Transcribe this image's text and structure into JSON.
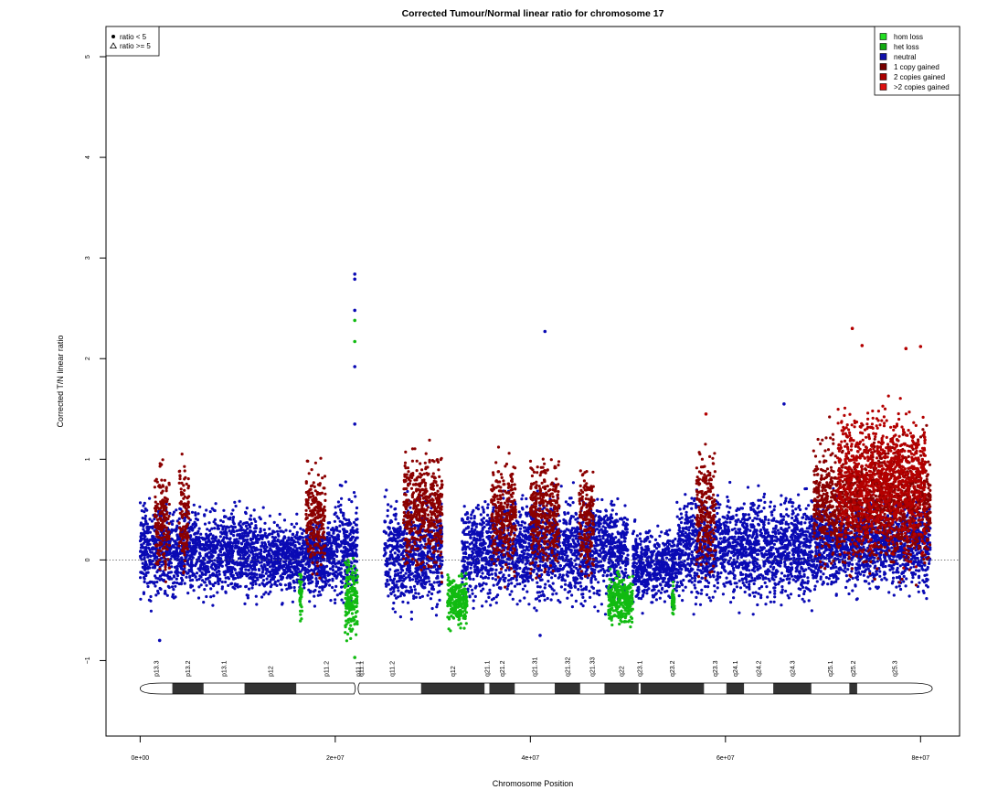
{
  "chart_data": {
    "type": "scatter",
    "title": "Corrected Tumour/Normal linear ratio for chromosome  17",
    "xlabel": "Chromosome Position",
    "ylabel": "Corrected T/N linear ratio",
    "xlim": [
      -3500000,
      84000000
    ],
    "ylim": [
      -1.75,
      5.3
    ],
    "x_ticks": [
      {
        "value": 0,
        "label": "0e+00"
      },
      {
        "value": 20000000,
        "label": "2e+07"
      },
      {
        "value": 40000000,
        "label": "4e+07"
      },
      {
        "value": 60000000,
        "label": "6e+07"
      },
      {
        "value": 80000000,
        "label": "8e+07"
      }
    ],
    "y_ticks": [
      {
        "value": -1,
        "label": "−1"
      },
      {
        "value": 0,
        "label": "0"
      },
      {
        "value": 1,
        "label": "1"
      },
      {
        "value": 2,
        "label": "2"
      },
      {
        "value": 3,
        "label": "3"
      },
      {
        "value": 4,
        "label": "4"
      },
      {
        "value": 5,
        "label": "5"
      }
    ],
    "reference_line": {
      "y": 0,
      "style": "dotted"
    },
    "grid": false,
    "shape_legend": {
      "position": "top-left",
      "entries": [
        {
          "symbol": "filled-circle",
          "label": "ratio < 5"
        },
        {
          "symbol": "open-triangle",
          "label": "ratio >= 5"
        }
      ]
    },
    "legend": {
      "position": "top-right",
      "entries": [
        {
          "label": "hom loss",
          "color": "#22dd22"
        },
        {
          "label": "het loss",
          "color": "#11aa11"
        },
        {
          "label": "neutral",
          "color": "#1111aa"
        },
        {
          "label": "1 copy gained",
          "color": "#770000"
        },
        {
          "label": "2 copies gained",
          "color": "#aa0000"
        },
        {
          "label": ">2 copies gained",
          "color": "#dd1111"
        }
      ]
    },
    "series": [
      {
        "name": "neutral",
        "color": "#0a0ab4",
        "segments": [
          {
            "start": 0,
            "end": 3000000,
            "mean": 0.1,
            "spread": 0.38
          },
          {
            "start": 3000000,
            "end": 12000000,
            "mean": 0.08,
            "spread": 0.35
          },
          {
            "start": 12000000,
            "end": 20000000,
            "mean": 0.02,
            "spread": 0.3
          },
          {
            "start": 20000000,
            "end": 22300000,
            "mean": 0.1,
            "spread": 0.4
          },
          {
            "start": 25000000,
            "end": 31000000,
            "mean": 0.05,
            "spread": 0.42
          },
          {
            "start": 33000000,
            "end": 50000000,
            "mean": 0.1,
            "spread": 0.4
          },
          {
            "start": 50500000,
            "end": 55000000,
            "mean": -0.05,
            "spread": 0.3
          },
          {
            "start": 55000000,
            "end": 69000000,
            "mean": 0.1,
            "spread": 0.4
          },
          {
            "start": 69000000,
            "end": 81000000,
            "mean": 0.15,
            "spread": 0.35
          }
        ],
        "outliers": [
          {
            "x": 22000000,
            "y": 2.84
          },
          {
            "x": 22000000,
            "y": 2.79
          },
          {
            "x": 22000000,
            "y": 2.48
          },
          {
            "x": 22000000,
            "y": 1.92
          },
          {
            "x": 22000000,
            "y": 1.35
          },
          {
            "x": 41500000,
            "y": 2.27
          },
          {
            "x": 66000000,
            "y": 1.55
          },
          {
            "x": 2000000,
            "y": -0.8
          },
          {
            "x": 41000000,
            "y": -0.75
          }
        ]
      },
      {
        "name": "het loss",
        "color": "#11bb11",
        "segments": [
          {
            "start": 16300000,
            "end": 16600000,
            "mean": -0.35,
            "spread": 0.2
          },
          {
            "start": 21000000,
            "end": 22300000,
            "mean": -0.4,
            "spread": 0.35
          },
          {
            "start": 31500000,
            "end": 33500000,
            "mean": -0.4,
            "spread": 0.2
          },
          {
            "start": 48000000,
            "end": 50500000,
            "mean": -0.4,
            "spread": 0.2
          },
          {
            "start": 54500000,
            "end": 54800000,
            "mean": -0.4,
            "spread": 0.15
          }
        ],
        "outliers": [
          {
            "x": 22000000,
            "y": 2.38
          },
          {
            "x": 22000000,
            "y": 2.17
          },
          {
            "x": 22000000,
            "y": -0.97
          }
        ]
      },
      {
        "name": "1 copy gained",
        "color": "#8b0000",
        "segments": [
          {
            "start": 1500000,
            "end": 3000000,
            "mean": 0.4,
            "spread": 0.45
          },
          {
            "start": 4000000,
            "end": 5000000,
            "mean": 0.4,
            "spread": 0.45
          },
          {
            "start": 17000000,
            "end": 19000000,
            "mean": 0.4,
            "spread": 0.4
          },
          {
            "start": 27000000,
            "end": 31000000,
            "mean": 0.5,
            "spread": 0.45
          },
          {
            "start": 36000000,
            "end": 38500000,
            "mean": 0.45,
            "spread": 0.45
          },
          {
            "start": 40000000,
            "end": 43000000,
            "mean": 0.45,
            "spread": 0.45
          },
          {
            "start": 45000000,
            "end": 46500000,
            "mean": 0.4,
            "spread": 0.45
          },
          {
            "start": 57000000,
            "end": 59000000,
            "mean": 0.45,
            "spread": 0.45
          },
          {
            "start": 69000000,
            "end": 81000000,
            "mean": 0.55,
            "spread": 0.5
          }
        ]
      },
      {
        "name": "2 copies gained",
        "color": "#b40000",
        "segments": [
          {
            "start": 71500000,
            "end": 80500000,
            "mean": 0.8,
            "spread": 0.55
          }
        ],
        "outliers": [
          {
            "x": 73000000,
            "y": 2.3
          },
          {
            "x": 74000000,
            "y": 2.13
          },
          {
            "x": 78500000,
            "y": 2.1
          },
          {
            "x": 80000000,
            "y": 2.12
          },
          {
            "x": 58000000,
            "y": 1.45
          }
        ]
      }
    ],
    "ideogram": {
      "centromere": 22200000,
      "end": 81200000,
      "bands": [
        {
          "label": "p13.3",
          "start": 0,
          "end": 3300000,
          "stain": "gneg"
        },
        {
          "label": "p13.2",
          "start": 3300000,
          "end": 6500000,
          "stain": "gpos"
        },
        {
          "label": "p13.1",
          "start": 6500000,
          "end": 10700000,
          "stain": "gneg"
        },
        {
          "label": "p12",
          "start": 10700000,
          "end": 16000000,
          "stain": "gpos"
        },
        {
          "label": "p11.2",
          "start": 16000000,
          "end": 22200000,
          "stain": "gneg"
        },
        {
          "label": "p11.1",
          "start": 22200000,
          "end": 22500000,
          "stain": "acen"
        },
        {
          "label": "q11.1",
          "start": 22500000,
          "end": 22800000,
          "stain": "acen"
        },
        {
          "label": "q11.2",
          "start": 22800000,
          "end": 28800000,
          "stain": "gneg"
        },
        {
          "label": "q12",
          "start": 28800000,
          "end": 35300000,
          "stain": "gpos"
        },
        {
          "label": "q21.1",
          "start": 35300000,
          "end": 35800000,
          "stain": "gneg"
        },
        {
          "label": "q21.2",
          "start": 35800000,
          "end": 38400000,
          "stain": "gpos"
        },
        {
          "label": "q21.31",
          "start": 38400000,
          "end": 42500000,
          "stain": "gneg"
        },
        {
          "label": "q21.32",
          "start": 42500000,
          "end": 45100000,
          "stain": "gpos"
        },
        {
          "label": "q21.33",
          "start": 45100000,
          "end": 47600000,
          "stain": "gneg"
        },
        {
          "label": "q22",
          "start": 47600000,
          "end": 51100000,
          "stain": "gpos"
        },
        {
          "label": "q23.1",
          "start": 51100000,
          "end": 51300000,
          "stain": "gneg"
        },
        {
          "label": "q23.2",
          "start": 51300000,
          "end": 57800000,
          "stain": "gpos"
        },
        {
          "label": "q23.3",
          "start": 57800000,
          "end": 60100000,
          "stain": "gneg"
        },
        {
          "label": "q24.1",
          "start": 60100000,
          "end": 61900000,
          "stain": "gpos"
        },
        {
          "label": "q24.2",
          "start": 61900000,
          "end": 64900000,
          "stain": "gneg"
        },
        {
          "label": "q24.3",
          "start": 64900000,
          "end": 68800000,
          "stain": "gpos"
        },
        {
          "label": "q25.1",
          "start": 68800000,
          "end": 72700000,
          "stain": "gneg"
        },
        {
          "label": "q25.2",
          "start": 72700000,
          "end": 73500000,
          "stain": "gpos"
        },
        {
          "label": "q25.3",
          "start": 73500000,
          "end": 81200000,
          "stain": "gneg"
        }
      ]
    }
  }
}
